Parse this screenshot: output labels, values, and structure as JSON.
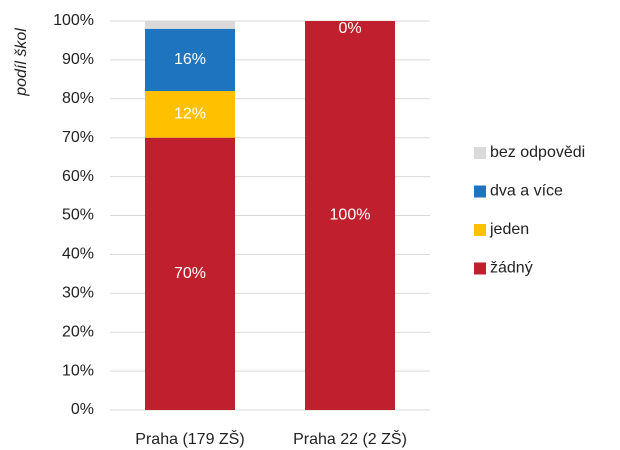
{
  "chart_data": {
    "type": "stacked_bar",
    "y_label": "podíl škol",
    "categories": [
      "Praha (179 ZŠ)",
      "Praha 22 (2 ZŠ)"
    ],
    "series": [
      {
        "name": "žádný",
        "color": "#c0202e",
        "values": [
          70,
          100
        ],
        "value_labels": [
          "70%",
          "100%"
        ]
      },
      {
        "name": "jeden",
        "color": "#ffc000",
        "values": [
          12,
          0
        ],
        "value_labels": [
          "12%",
          null
        ]
      },
      {
        "name": "dva a více",
        "color": "#1f74c0",
        "values": [
          16,
          0
        ],
        "value_labels": [
          "16%",
          null
        ]
      },
      {
        "name": "bez odpovědi",
        "color": "#d9d9d9",
        "values": [
          2,
          0
        ],
        "value_labels": [
          null,
          "0%"
        ]
      }
    ],
    "ylim": [
      0,
      100
    ],
    "yticks": [
      {
        "value": 0,
        "label": "0%"
      },
      {
        "value": 10,
        "label": "10%"
      },
      {
        "value": 20,
        "label": "20%"
      },
      {
        "value": 30,
        "label": "30%"
      },
      {
        "value": 40,
        "label": "40%"
      },
      {
        "value": 50,
        "label": "50%"
      },
      {
        "value": 60,
        "label": "60%"
      },
      {
        "value": 70,
        "label": "70%"
      },
      {
        "value": 80,
        "label": "80%"
      },
      {
        "value": 90,
        "label": "90%"
      },
      {
        "value": 100,
        "label": "100%"
      }
    ],
    "grid": true,
    "legend": "right"
  }
}
